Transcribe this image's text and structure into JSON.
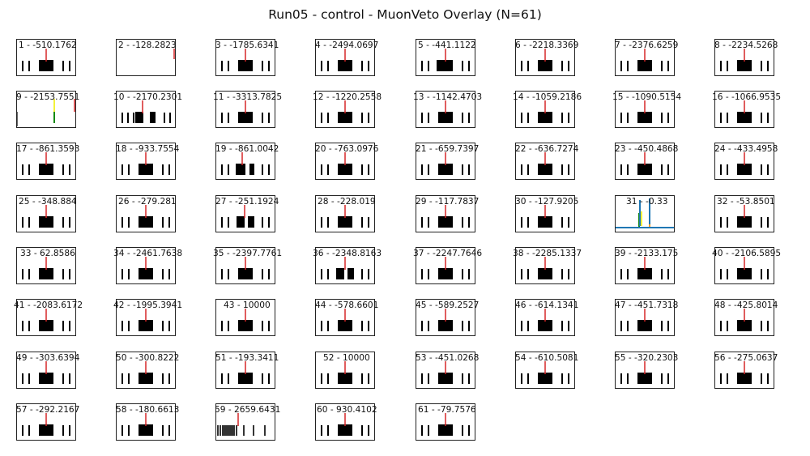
{
  "figure": {
    "title": "Run05 - control - MuonVeto Overlay (N=61)"
  },
  "chart_data": {
    "type": "line",
    "title": "Run05 - control - MuonVeto Overlay (N=61)",
    "grid": false,
    "colors": {
      "frame": "#222222",
      "marker": "#d62728",
      "waveform": "#1f77b4",
      "orange": "#ff9f1c",
      "yellow": "#f2f23a",
      "green": "#138a13"
    },
    "panels": [
      {
        "index": 1,
        "value": -510.1762,
        "label": "1 - -510.1762"
      },
      {
        "index": 2,
        "value": -128.2823,
        "label": "2 - -128.2823"
      },
      {
        "index": 3,
        "value": -1785.6341,
        "label": "3 - -1785.6341"
      },
      {
        "index": 4,
        "value": -2494.0697,
        "label": "4 - -2494.0697"
      },
      {
        "index": 5,
        "value": -441.1122,
        "label": "5 - -441.1122"
      },
      {
        "index": 6,
        "value": -2218.3369,
        "label": "6 - -2218.3369"
      },
      {
        "index": 7,
        "value": -2376.6259,
        "label": "7 - -2376.6259"
      },
      {
        "index": 8,
        "value": -2234.5268,
        "label": "8 - -2234.5268"
      },
      {
        "index": 9,
        "value": -2153.7551,
        "label": "9 - -2153.7551"
      },
      {
        "index": 10,
        "value": -2170.2301,
        "label": "10 - -2170.2301"
      },
      {
        "index": 11,
        "value": -3313.7825,
        "label": "11 - -3313.7825"
      },
      {
        "index": 12,
        "value": -1220.2558,
        "label": "12 - -1220.2558"
      },
      {
        "index": 13,
        "value": -1142.4703,
        "label": "13 - -1142.4703"
      },
      {
        "index": 14,
        "value": -1059.2186,
        "label": "14 - -1059.2186"
      },
      {
        "index": 15,
        "value": -1090.5154,
        "label": "15 - -1090.5154"
      },
      {
        "index": 16,
        "value": -1066.9535,
        "label": "16 - -1066.9535"
      },
      {
        "index": 17,
        "value": -861.3593,
        "label": "17 - -861.3593"
      },
      {
        "index": 18,
        "value": -933.7554,
        "label": "18 - -933.7554"
      },
      {
        "index": 19,
        "value": -861.0042,
        "label": "19 - -861.0042"
      },
      {
        "index": 20,
        "value": -763.0976,
        "label": "20 - -763.0976"
      },
      {
        "index": 21,
        "value": -659.7397,
        "label": "21 - -659.7397"
      },
      {
        "index": 22,
        "value": -636.7274,
        "label": "22 - -636.7274"
      },
      {
        "index": 23,
        "value": -450.4868,
        "label": "23 - -450.4868"
      },
      {
        "index": 24,
        "value": -433.4958,
        "label": "24 - -433.4958"
      },
      {
        "index": 25,
        "value": -348.884,
        "label": "25 - -348.884"
      },
      {
        "index": 26,
        "value": -279.281,
        "label": "26 - -279.281"
      },
      {
        "index": 27,
        "value": -251.1924,
        "label": "27 - -251.1924"
      },
      {
        "index": 28,
        "value": -228.019,
        "label": "28 - -228.019"
      },
      {
        "index": 29,
        "value": -117.7837,
        "label": "29 - -117.7837"
      },
      {
        "index": 30,
        "value": -127.9205,
        "label": "30 - -127.9205"
      },
      {
        "index": 31,
        "value": -0.33,
        "label": "31 - -0.33"
      },
      {
        "index": 32,
        "value": -53.8501,
        "label": "32 - -53.8501"
      },
      {
        "index": 33,
        "value": 62.8586,
        "label": "33 - 62.8586"
      },
      {
        "index": 34,
        "value": -2461.7638,
        "label": "34 - -2461.7638"
      },
      {
        "index": 35,
        "value": -2397.7761,
        "label": "35 - -2397.7761"
      },
      {
        "index": 36,
        "value": -2348.8163,
        "label": "36 - -2348.8163"
      },
      {
        "index": 37,
        "value": -2247.7646,
        "label": "37 - -2247.7646"
      },
      {
        "index": 38,
        "value": -2285.1337,
        "label": "38 - -2285.1337"
      },
      {
        "index": 39,
        "value": -2133.175,
        "label": "39 - -2133.175"
      },
      {
        "index": 40,
        "value": -2106.5895,
        "label": "40 - -2106.5895"
      },
      {
        "index": 41,
        "value": -2083.6172,
        "label": "41 - -2083.6172"
      },
      {
        "index": 42,
        "value": -1995.3941,
        "label": "42 - -1995.3941"
      },
      {
        "index": 43,
        "value": 10000,
        "label": "43 - 10000"
      },
      {
        "index": 44,
        "value": -578.6601,
        "label": "44 - -578.6601"
      },
      {
        "index": 45,
        "value": -589.2527,
        "label": "45 - -589.2527"
      },
      {
        "index": 46,
        "value": -614.1341,
        "label": "46 - -614.1341"
      },
      {
        "index": 47,
        "value": -451.7318,
        "label": "47 - -451.7318"
      },
      {
        "index": 48,
        "value": -425.8014,
        "label": "48 - -425.8014"
      },
      {
        "index": 49,
        "value": -303.6394,
        "label": "49 - -303.6394"
      },
      {
        "index": 50,
        "value": -300.8222,
        "label": "50 - -300.8222"
      },
      {
        "index": 51,
        "value": -193.3411,
        "label": "51 - -193.3411"
      },
      {
        "index": 52,
        "value": 10000,
        "label": "52 - 10000"
      },
      {
        "index": 53,
        "value": -451.0268,
        "label": "53 - -451.0268"
      },
      {
        "index": 54,
        "value": -610.5081,
        "label": "54 - -610.5081"
      },
      {
        "index": 55,
        "value": -320.2303,
        "label": "55 - -320.2303"
      },
      {
        "index": 56,
        "value": -275.0637,
        "label": "56 - -275.0637"
      },
      {
        "index": 57,
        "value": -292.2167,
        "label": "57 - -292.2167"
      },
      {
        "index": 58,
        "value": -180.6613,
        "label": "58 - -180.6613"
      },
      {
        "index": 59,
        "value": 2659.6431,
        "label": "59 - 2659.6431"
      },
      {
        "index": 60,
        "value": 930.4102,
        "label": "60 - 930.4102"
      },
      {
        "index": 61,
        "value": -79.7576,
        "label": "61 - -79.7576"
      }
    ]
  }
}
